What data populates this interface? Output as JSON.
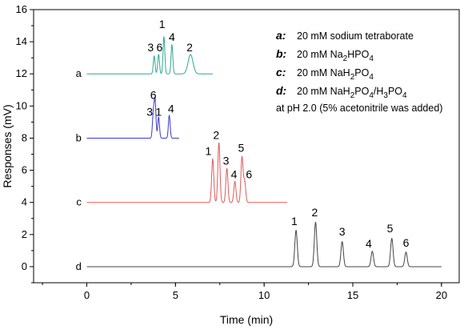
{
  "chart_data": {
    "type": "line",
    "xlabel": "Time (min)",
    "ylabel": "Responses (mV)",
    "xlim": [
      -3,
      21
    ],
    "ylim": [
      -1,
      16
    ],
    "x_ticks": [
      0,
      5,
      10,
      15,
      20
    ],
    "y_ticks": [
      0,
      2,
      4,
      6,
      8,
      10,
      12,
      14,
      16
    ],
    "grid": false,
    "legend": [
      {
        "key": "a:",
        "text": "20 mM sodium tetraborate"
      },
      {
        "key": "b:",
        "text": "20 mM Na2HPO4",
        "html": "20 mM Na<tspan dy='4' font-size='10'>2</tspan><tspan dy='-4'>HPO</tspan><tspan dy='4' font-size='10'>4</tspan>"
      },
      {
        "key": "c:",
        "text": "20 mM NaH2PO4",
        "html": "20 mM NaH<tspan dy='4' font-size='10'>2</tspan><tspan dy='-4'>PO</tspan><tspan dy='4' font-size='10'>4</tspan>"
      },
      {
        "key": "d:",
        "text": "20 mM NaH2PO4/H3PO4",
        "html": "20 mM NaH<tspan dy='4' font-size='10'>2</tspan><tspan dy='-4'>PO</tspan><tspan dy='4' font-size='10'>4</tspan><tspan dy='-4'>/H</tspan><tspan dy='4' font-size='10'>3</tspan><tspan dy='-4'>PO</tspan><tspan dy='4' font-size='10'>4</tspan>"
      }
    ],
    "note": "at pH 2.0 (5% acetonitrile was added)",
    "series": [
      {
        "name": "a",
        "color": "#2ea896",
        "baseline": 12,
        "x_end": 7.1,
        "peaks": [
          {
            "label": "3",
            "x": 3.8,
            "y": 13.1,
            "w": 0.05,
            "lx": 3.6,
            "ly": 13.4
          },
          {
            "label": "6",
            "x": 4.05,
            "y": 13.2,
            "w": 0.05,
            "lx": 4.1,
            "ly": 13.4
          },
          {
            "label": "1",
            "x": 4.35,
            "y": 14.3,
            "w": 0.05,
            "lx": 4.25,
            "ly": 14.85
          },
          {
            "label": "4",
            "x": 4.8,
            "y": 13.8,
            "w": 0.05,
            "lx": 4.8,
            "ly": 14.05
          },
          {
            "label": "2",
            "x": 5.85,
            "y": 13.2,
            "w": 0.14,
            "lx": 5.8,
            "ly": 13.4
          }
        ]
      },
      {
        "name": "b",
        "color": "#3a3ad0",
        "baseline": 8,
        "x_end": 5.2,
        "peaks": [
          {
            "label": "3",
            "x": 3.75,
            "y": 9.5,
            "w": 0.05,
            "lx": 3.55,
            "ly": 9.4
          },
          {
            "label": "6",
            "x": 3.85,
            "y": 10.3,
            "w": 0.05,
            "lx": 3.75,
            "ly": 10.45
          },
          {
            "label": "1",
            "x": 4.05,
            "y": 9.3,
            "w": 0.05,
            "lx": 4.05,
            "ly": 9.4
          },
          {
            "label": "4",
            "x": 4.65,
            "y": 9.4,
            "w": 0.05,
            "lx": 4.75,
            "ly": 9.6
          }
        ]
      },
      {
        "name": "c",
        "color": "#e05a5a",
        "baseline": 4,
        "x_end": 11.3,
        "peaks": [
          {
            "label": "1",
            "x": 7.1,
            "y": 6.7,
            "w": 0.06,
            "lx": 6.85,
            "ly": 6.95
          },
          {
            "label": "2",
            "x": 7.45,
            "y": 7.7,
            "w": 0.06,
            "lx": 7.3,
            "ly": 7.95
          },
          {
            "label": "3",
            "x": 7.9,
            "y": 6.1,
            "w": 0.06,
            "lx": 7.85,
            "ly": 6.35
          },
          {
            "label": "4",
            "x": 8.35,
            "y": 5.3,
            "w": 0.06,
            "lx": 8.3,
            "ly": 5.5
          },
          {
            "label": "5",
            "x": 8.75,
            "y": 6.8,
            "w": 0.06,
            "lx": 8.7,
            "ly": 7.15
          },
          {
            "label": "6",
            "x": 8.9,
            "y": 5.3,
            "w": 0.06,
            "lx": 9.15,
            "ly": 5.5
          }
        ]
      },
      {
        "name": "d",
        "color": "#444444",
        "baseline": 0,
        "x_end": 20.0,
        "peaks": [
          {
            "label": "1",
            "x": 11.8,
            "y": 2.25,
            "w": 0.07,
            "lx": 11.7,
            "ly": 2.6
          },
          {
            "label": "2",
            "x": 12.9,
            "y": 2.75,
            "w": 0.07,
            "lx": 12.85,
            "ly": 3.15
          },
          {
            "label": "3",
            "x": 14.4,
            "y": 1.55,
            "w": 0.07,
            "lx": 14.4,
            "ly": 1.95
          },
          {
            "label": "4",
            "x": 16.1,
            "y": 0.95,
            "w": 0.07,
            "lx": 15.9,
            "ly": 1.2
          },
          {
            "label": "5",
            "x": 17.2,
            "y": 1.75,
            "w": 0.07,
            "lx": 17.1,
            "ly": 2.15
          },
          {
            "label": "6",
            "x": 18.0,
            "y": 0.9,
            "w": 0.07,
            "lx": 18.0,
            "ly": 1.25
          }
        ]
      }
    ]
  }
}
